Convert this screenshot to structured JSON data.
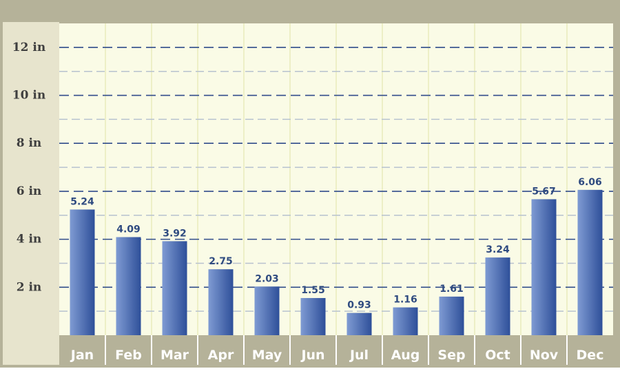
{
  "colors": {
    "frame": "#b5b299",
    "axis_panel": "#e7e4cd",
    "plot_bg": "#fafbe6",
    "bar_light": "#7f9bd3",
    "bar_dark": "#2e4f99",
    "grid_major": "#2f4b8a",
    "grid_minor": "#b7c2cf",
    "vline": "#e0e3a6",
    "label": "#2f4b80"
  },
  "chart_data": {
    "type": "bar",
    "title": "",
    "xlabel": "",
    "ylabel": "",
    "categories": [
      "Jan",
      "Feb",
      "Mar",
      "Apr",
      "May",
      "Jun",
      "Jul",
      "Aug",
      "Sep",
      "Oct",
      "Nov",
      "Dec"
    ],
    "values": [
      5.24,
      4.09,
      3.92,
      2.75,
      2.03,
      1.55,
      0.93,
      1.16,
      1.61,
      3.24,
      5.67,
      6.06
    ],
    "value_labels": [
      "5.24",
      "4.09",
      "3.92",
      "2.75",
      "2.03",
      "1.55",
      "0.93",
      "1.16",
      "1.61",
      "3.24",
      "5.67",
      "6.06"
    ],
    "ylim": [
      0,
      13
    ],
    "yticks": [
      2,
      4,
      6,
      8,
      10,
      12
    ],
    "ytick_labels": [
      "2 in",
      "4 in",
      "6 in",
      "8 in",
      "10 in",
      "12 in"
    ],
    "minor_grid_step": 1,
    "grid": true,
    "legend": "none"
  }
}
